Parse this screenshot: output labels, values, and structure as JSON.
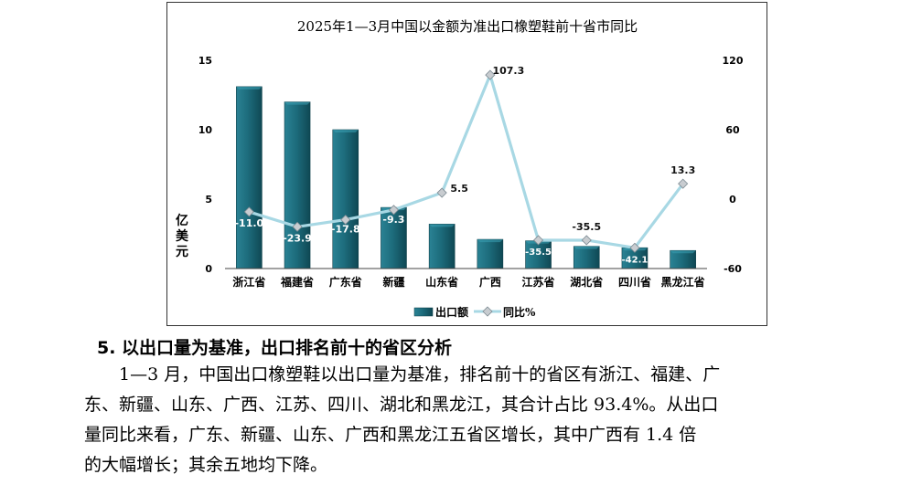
{
  "chart_data": {
    "type": "bar",
    "title": "2025年1—3月中国以金额为准出口橡塑鞋前十省市同比",
    "ylabel": "亿美元",
    "categories": [
      "浙江省",
      "福建省",
      "广东省",
      "新疆",
      "山东省",
      "广西",
      "江苏省",
      "湖北省",
      "四川省",
      "黑龙江省"
    ],
    "left_axis": {
      "ticks": [
        "15",
        "10",
        "5",
        "0"
      ],
      "ylim": [
        0,
        15
      ]
    },
    "right_axis": {
      "ticks": [
        "120",
        "60",
        "0",
        "-60"
      ],
      "ylim": [
        -60,
        120
      ]
    },
    "series": [
      {
        "name": "出口额",
        "kind": "bar",
        "color": "#1f6f7f",
        "values": [
          13.1,
          12.0,
          10.0,
          4.4,
          3.2,
          2.1,
          2.0,
          1.6,
          1.5,
          1.3
        ]
      },
      {
        "name": "同比%",
        "kind": "line",
        "color": "#a8d8e4",
        "values": [
          -11.0,
          -23.9,
          -17.8,
          -9.3,
          5.5,
          107.3,
          -35.5,
          -35.5,
          -42.1,
          13.3
        ],
        "labels": [
          "-11.0",
          "-23.9",
          "-17.8",
          "-9.3",
          "5.5",
          "107.3",
          "-35.5",
          "-35.5",
          "-42.1",
          "13.3"
        ]
      }
    ]
  },
  "section": {
    "heading": "5. 以出口量为基准，出口排名前十的省区分析",
    "lines": [
      "1—3 月，中国出口橡塑鞋以出口量为基准，排名前十的省区有浙江、福建、广",
      "东、新疆、山东、广西、江苏、四川、湖北和黑龙江，其合计占比 93.4%。从出口",
      "量同比来看，广东、新疆、山东、广西和黑龙江五省区增长，其中广西有 1.4 倍",
      "的大幅增长；其余五地均下降。"
    ]
  }
}
